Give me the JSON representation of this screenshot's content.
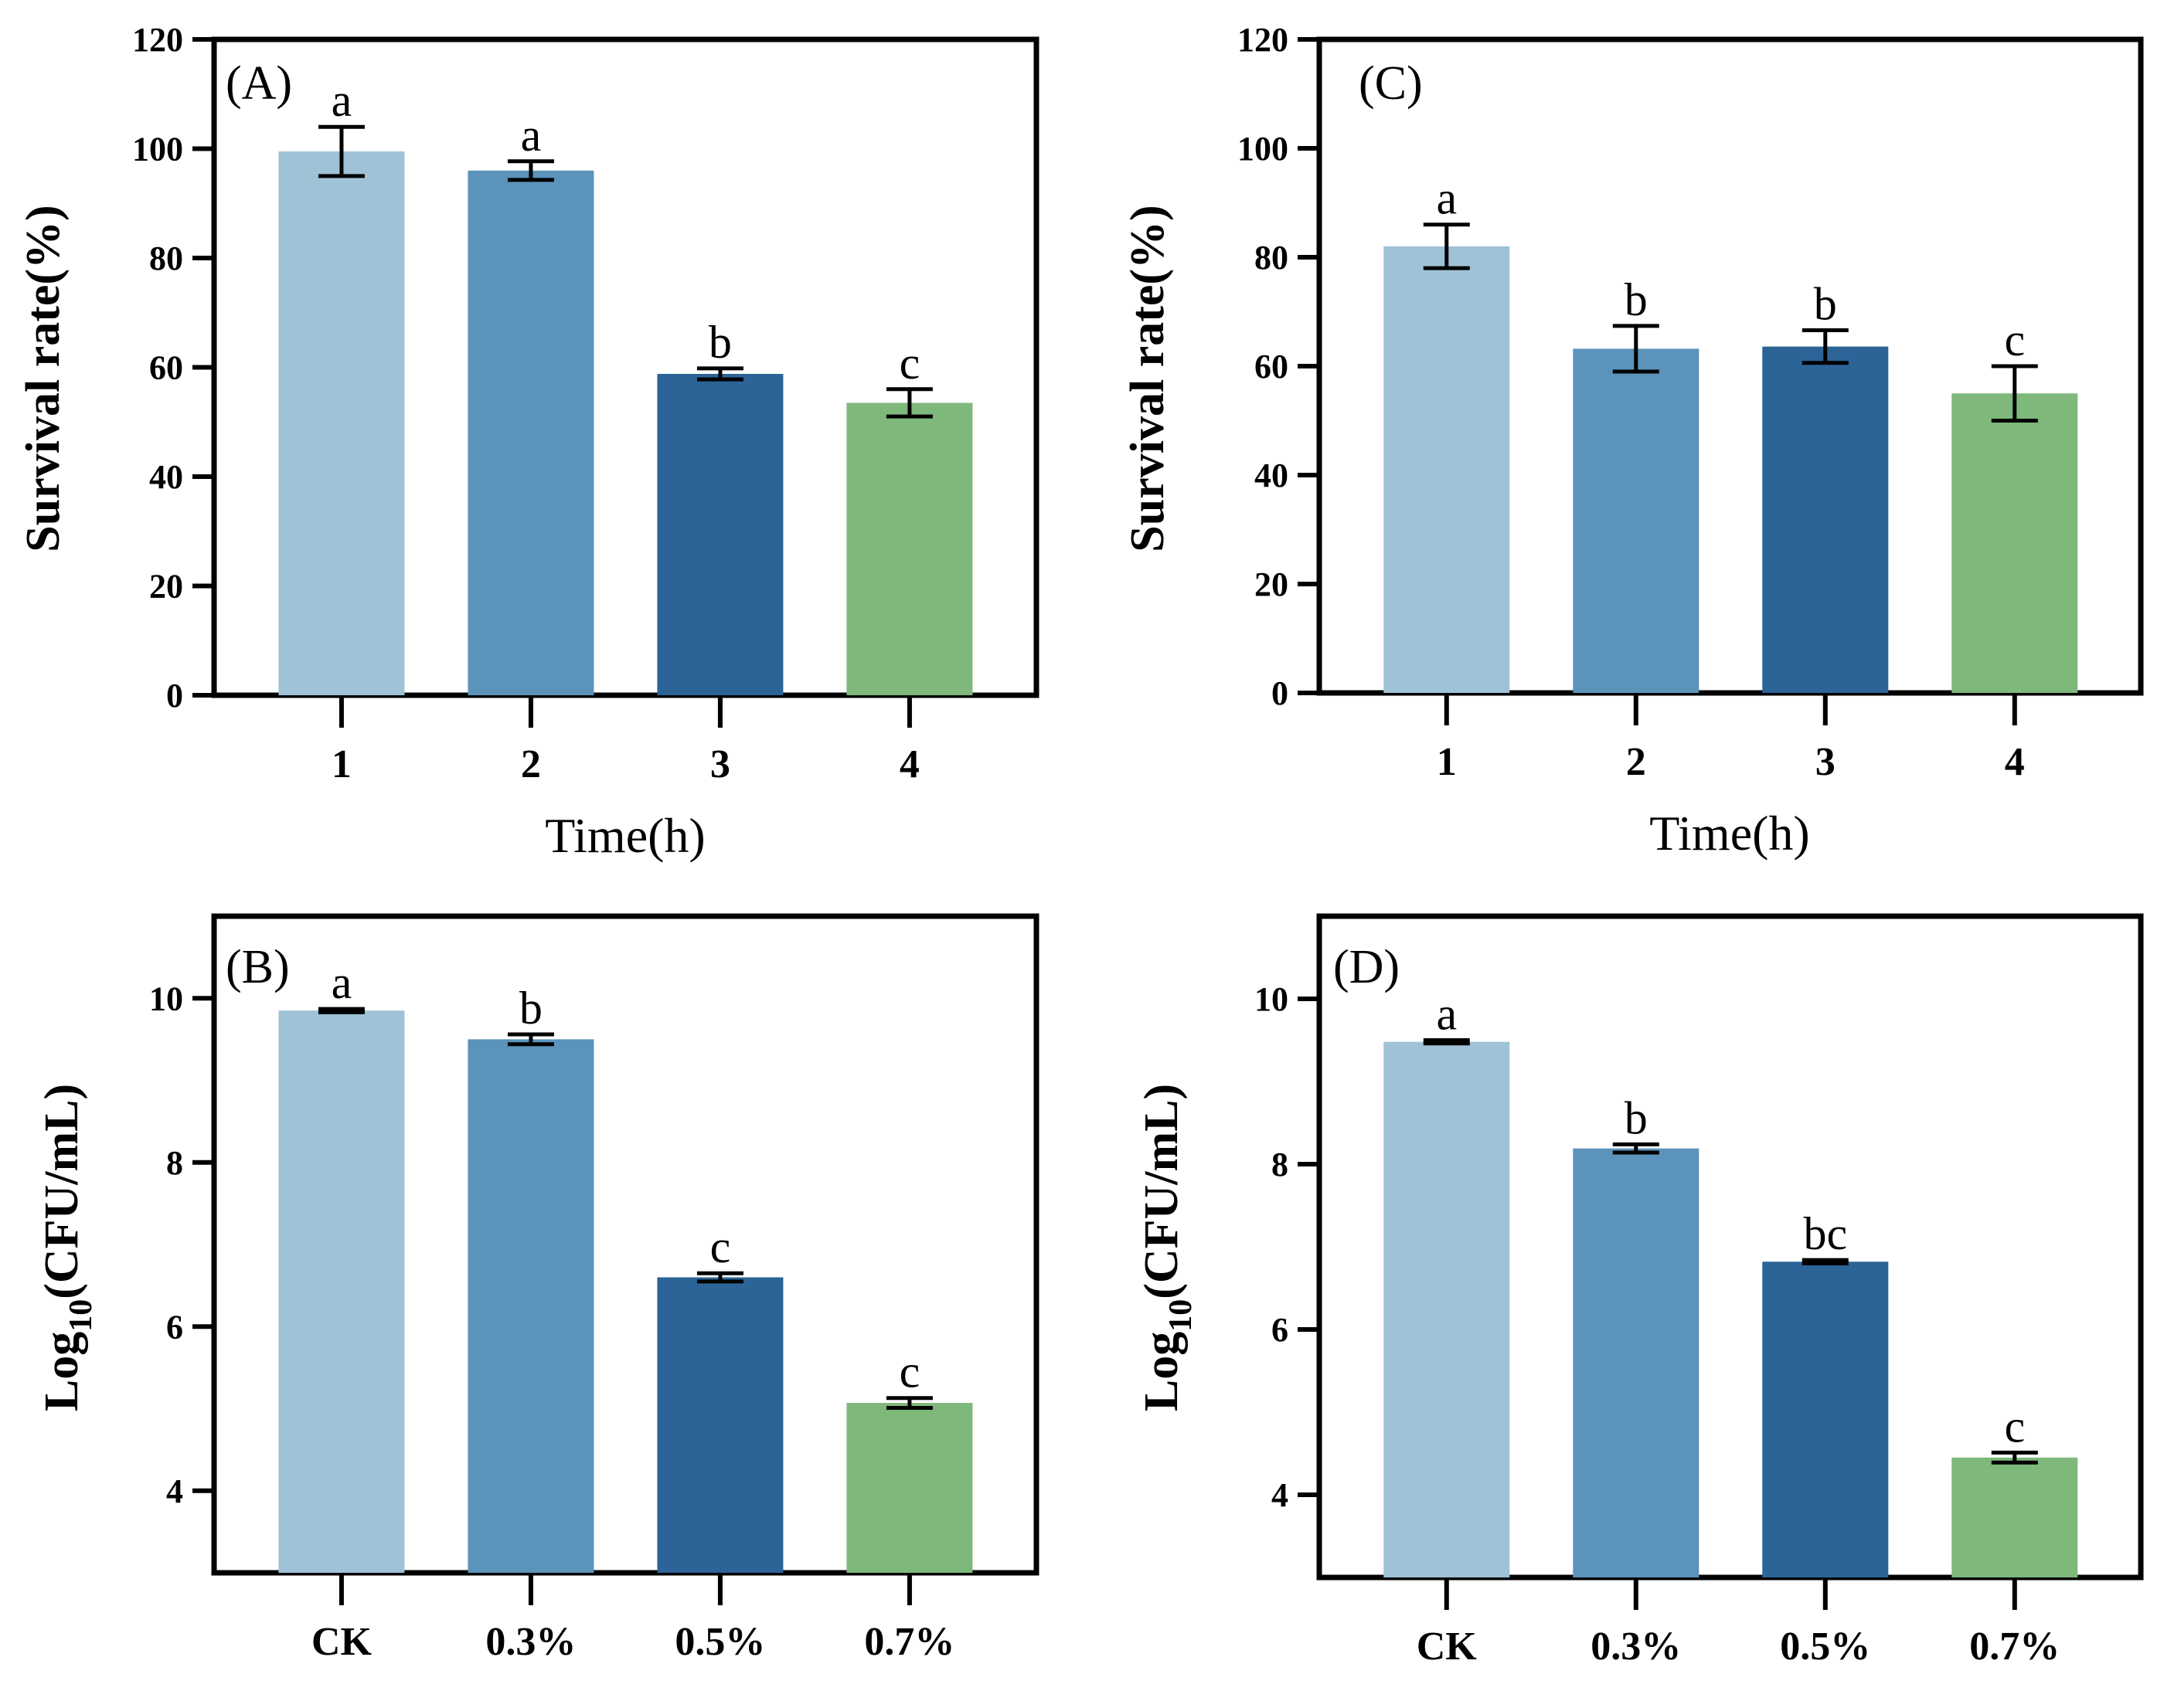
{
  "colors": [
    "#9fc2d6",
    "#5b93bb",
    "#2c6497",
    "#7eb87b"
  ],
  "chart_data": [
    {
      "id": "A",
      "type": "bar",
      "panel_label": "(A)",
      "categories": [
        "1",
        "2",
        "3",
        "4"
      ],
      "values": [
        99.5,
        96.0,
        58.8,
        53.5
      ],
      "errors": [
        4.5,
        1.7,
        1.0,
        2.5
      ],
      "sig_letters": [
        "a",
        "a",
        "b",
        "c"
      ],
      "xlabel": "Time(h)",
      "ylabel": "Survival rate(%)",
      "ylim": [
        0,
        120
      ],
      "yticks": [
        "0",
        "20",
        "40",
        "60",
        "80",
        "100",
        "120"
      ]
    },
    {
      "id": "C",
      "type": "bar",
      "panel_label": "(C)",
      "categories": [
        "1",
        "2",
        "3",
        "4"
      ],
      "values": [
        82.0,
        63.2,
        63.6,
        55.0
      ],
      "errors": [
        4.0,
        4.2,
        3.0,
        5.0
      ],
      "sig_letters": [
        "a",
        "b",
        "b",
        "c"
      ],
      "xlabel": "Time(h)",
      "ylabel": "Survival rate(%)",
      "ylim": [
        0,
        120
      ],
      "yticks": [
        "0",
        "20",
        "40",
        "60",
        "80",
        "100",
        "120"
      ]
    },
    {
      "id": "B",
      "type": "bar",
      "panel_label": "(B)",
      "categories": [
        "CK",
        "0.3%",
        "0.5%",
        "0.7%"
      ],
      "values": [
        9.85,
        9.5,
        6.6,
        5.07
      ],
      "errors": [
        0.02,
        0.06,
        0.05,
        0.06
      ],
      "sig_letters": [
        "a",
        "b",
        "c",
        "c"
      ],
      "xlabel": "",
      "ylabel": "Log10(CFU/mL)",
      "ylabel_base": "Log",
      "ylabel_sub": "10",
      "ylabel_rest": "(CFU/mL)",
      "ylim": [
        3,
        11
      ],
      "yticks": [
        "4",
        "6",
        "8",
        "10"
      ]
    },
    {
      "id": "D",
      "type": "bar",
      "panel_label": "(D)",
      "categories": [
        "CK",
        "0.3%",
        "0.5%",
        "0.7%"
      ],
      "values": [
        9.48,
        8.19,
        6.82,
        4.45
      ],
      "errors": [
        0.02,
        0.05,
        0.02,
        0.06
      ],
      "sig_letters": [
        "a",
        "b",
        "bc",
        "c"
      ],
      "xlabel": "",
      "ylabel": "Log10(CFU/mL)",
      "ylabel_base": "Log",
      "ylabel_sub": "10",
      "ylabel_rest": "(CFU/mL)",
      "ylim": [
        3,
        11
      ],
      "yticks": [
        "4",
        "6",
        "8",
        "10"
      ]
    }
  ]
}
